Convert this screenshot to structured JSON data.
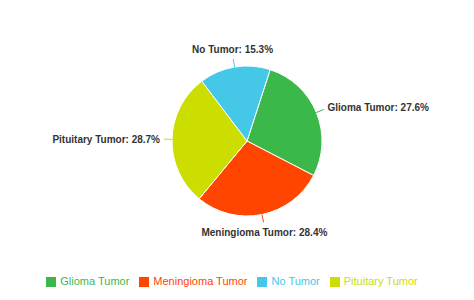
{
  "chart_data": {
    "type": "pie",
    "categories": [
      "Glioma Tumor",
      "Meningioma Tumor",
      "Pituitary Tumor",
      "No Tumor"
    ],
    "values": [
      27.6,
      28.4,
      28.7,
      15.3
    ],
    "value_labels": [
      "Glioma Tumor: 27.6%",
      "Meningioma Tumor: 28.4%",
      "Pituitary Tumor: 28.7%",
      "No Tumor: 15.3%"
    ],
    "colors": [
      "#3CB84A",
      "#FF4500",
      "#CCDD00",
      "#45C8E8"
    ],
    "data_labels": true,
    "legend": "bottom"
  }
}
